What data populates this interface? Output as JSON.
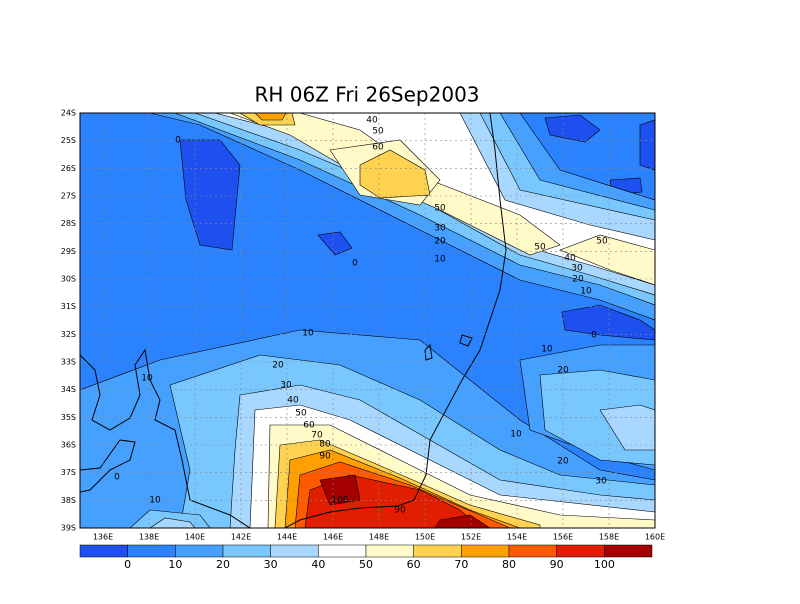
{
  "chart_data": {
    "type": "contour",
    "title": "RH 06Z Fri 26Sep2003",
    "xlim": [
      135,
      160
    ],
    "ylim": [
      -39,
      -24
    ],
    "grid": true,
    "xticks": [
      {
        "value": 136,
        "label": "136E"
      },
      {
        "value": 138,
        "label": "138E"
      },
      {
        "value": 140,
        "label": "140E"
      },
      {
        "value": 142,
        "label": "142E"
      },
      {
        "value": 144,
        "label": "144E"
      },
      {
        "value": 146,
        "label": "146E"
      },
      {
        "value": 148,
        "label": "148E"
      },
      {
        "value": 150,
        "label": "150E"
      },
      {
        "value": 152,
        "label": "152E"
      },
      {
        "value": 154,
        "label": "154E"
      },
      {
        "value": 156,
        "label": "156E"
      },
      {
        "value": 158,
        "label": "158E"
      },
      {
        "value": 160,
        "label": "160E"
      }
    ],
    "yticks": [
      {
        "value": -24,
        "label": "24S"
      },
      {
        "value": -25,
        "label": "25S"
      },
      {
        "value": -26,
        "label": "26S"
      },
      {
        "value": -27,
        "label": "27S"
      },
      {
        "value": -28,
        "label": "28S"
      },
      {
        "value": -29,
        "label": "29S"
      },
      {
        "value": -30,
        "label": "30S"
      },
      {
        "value": -31,
        "label": "31S"
      },
      {
        "value": -32,
        "label": "32S"
      },
      {
        "value": -33,
        "label": "33S"
      },
      {
        "value": -34,
        "label": "34S"
      },
      {
        "value": -35,
        "label": "35S"
      },
      {
        "value": -36,
        "label": "36S"
      },
      {
        "value": -37,
        "label": "37S"
      },
      {
        "value": -38,
        "label": "38S"
      },
      {
        "value": -39,
        "label": "39S"
      }
    ],
    "colorbar": {
      "levels": [
        0,
        10,
        20,
        30,
        40,
        50,
        60,
        70,
        80,
        90,
        100
      ],
      "colors": [
        "#1e50f0",
        "#2a82ff",
        "#46a0ff",
        "#78c8ff",
        "#a8d8ff",
        "#ffffff",
        "#fffac8",
        "#ffd250",
        "#ffa000",
        "#ff5a00",
        "#e11e00",
        "#a50000"
      ]
    },
    "contour_labels": [
      40,
      50,
      60,
      50,
      30,
      20,
      10,
      0,
      0,
      50,
      40,
      30,
      20,
      10,
      50,
      0,
      10,
      10,
      20,
      10,
      20,
      30,
      40,
      50,
      60,
      70,
      80,
      90,
      100,
      90,
      10,
      20,
      30,
      0,
      10
    ]
  }
}
